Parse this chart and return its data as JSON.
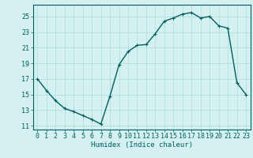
{
  "x": [
    0,
    1,
    2,
    3,
    4,
    5,
    6,
    7,
    8,
    9,
    10,
    11,
    12,
    13,
    14,
    15,
    16,
    17,
    18,
    19,
    20,
    21,
    22,
    23
  ],
  "y": [
    17.0,
    15.5,
    14.2,
    13.2,
    12.8,
    12.3,
    11.8,
    11.2,
    14.8,
    18.8,
    20.5,
    21.3,
    21.4,
    22.8,
    24.4,
    24.8,
    25.3,
    25.5,
    24.8,
    25.0,
    23.8,
    23.5,
    16.5,
    15.0
  ],
  "line_color": "#006060",
  "marker_color": "#006060",
  "background_color": "#d4f0f0",
  "grid_color": "#aadddd",
  "xlabel": "Humidex (Indice chaleur)",
  "xlim": [
    -0.5,
    23.5
  ],
  "ylim": [
    10.5,
    26.5
  ],
  "yticks": [
    11,
    13,
    15,
    17,
    19,
    21,
    23,
    25
  ],
  "xticks": [
    0,
    1,
    2,
    3,
    4,
    5,
    6,
    7,
    8,
    9,
    10,
    11,
    12,
    13,
    14,
    15,
    16,
    17,
    18,
    19,
    20,
    21,
    22,
    23
  ],
  "xlabel_fontsize": 6.5,
  "tick_fontsize": 6,
  "line_width": 1.0,
  "marker_size": 3.0
}
